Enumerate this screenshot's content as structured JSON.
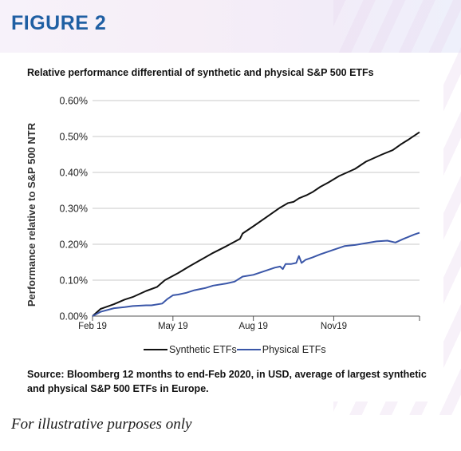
{
  "figure_label": "FIGURE 2",
  "footnote": "For illustrative purposes only",
  "colors": {
    "figure_label": "#1f5fa3",
    "synthetic": "#111111",
    "physical": "#3a56a8"
  },
  "chart_data": {
    "type": "line",
    "title": "Relative performance differential of synthetic and physical S&P 500 ETFs",
    "xlabel": "",
    "ylabel": "Performance relative to S&P 500 NTR",
    "ylim": [
      0,
      0.6
    ],
    "xlim": [
      0,
      12.2
    ],
    "y_ticks": [
      {
        "value": 0.0,
        "label": "0.00%"
      },
      {
        "value": 0.1,
        "label": "0.10%"
      },
      {
        "value": 0.2,
        "label": "0.20%"
      },
      {
        "value": 0.3,
        "label": "0.30%"
      },
      {
        "value": 0.4,
        "label": "0.40%"
      },
      {
        "value": 0.5,
        "label": "0.50%"
      },
      {
        "value": 0.6,
        "label": "0.60%"
      }
    ],
    "x_ticks": [
      {
        "value": 0,
        "label": "Feb 19"
      },
      {
        "value": 3,
        "label": "May 19"
      },
      {
        "value": 6,
        "label": "Aug 19"
      },
      {
        "value": 9,
        "label": "Nov19"
      },
      {
        "value": 12.2,
        "label": ""
      }
    ],
    "grid": "horizontal",
    "legend_position": "bottom",
    "series": [
      {
        "name": "Synthetic ETFs",
        "x": [
          0,
          0.3,
          0.8,
          1.2,
          1.5,
          2.0,
          2.4,
          2.7,
          3.2,
          3.6,
          4.0,
          4.5,
          5.0,
          5.5,
          5.6,
          6.0,
          6.5,
          7.0,
          7.3,
          7.5,
          7.7,
          8.0,
          8.2,
          8.5,
          8.8,
          9.2,
          9.5,
          9.8,
          10.2,
          10.5,
          10.8,
          11.2,
          11.5,
          11.8,
          12.2
        ],
        "y": [
          0,
          0.02,
          0.033,
          0.046,
          0.053,
          0.07,
          0.081,
          0.1,
          0.12,
          0.138,
          0.155,
          0.176,
          0.195,
          0.215,
          0.23,
          0.25,
          0.276,
          0.302,
          0.315,
          0.318,
          0.328,
          0.337,
          0.345,
          0.36,
          0.372,
          0.39,
          0.4,
          0.41,
          0.43,
          0.44,
          0.45,
          0.462,
          0.478,
          0.492,
          0.512
        ]
      },
      {
        "name": "Physical ETFs",
        "x": [
          0,
          0.3,
          0.8,
          1.2,
          1.5,
          2.0,
          2.2,
          2.6,
          2.8,
          3.0,
          3.2,
          3.5,
          3.8,
          4.2,
          4.5,
          5.0,
          5.3,
          5.6,
          6.0,
          6.4,
          6.8,
          7.0,
          7.1,
          7.2,
          7.4,
          7.6,
          7.7,
          7.8,
          7.95,
          8.2,
          8.5,
          9.0,
          9.4,
          9.8,
          10.2,
          10.6,
          11.0,
          11.3,
          11.6,
          12.0,
          12.2
        ],
        "y": [
          0,
          0.012,
          0.022,
          0.025,
          0.028,
          0.03,
          0.03,
          0.035,
          0.048,
          0.058,
          0.06,
          0.065,
          0.072,
          0.078,
          0.085,
          0.091,
          0.096,
          0.11,
          0.115,
          0.125,
          0.135,
          0.138,
          0.131,
          0.145,
          0.145,
          0.148,
          0.167,
          0.148,
          0.157,
          0.163,
          0.172,
          0.185,
          0.195,
          0.198,
          0.203,
          0.208,
          0.21,
          0.205,
          0.215,
          0.227,
          0.232
        ]
      }
    ],
    "source": "Source: Bloomberg 12 months to end-Feb 2020, in USD, average of largest synthetic and physical S&P 500 ETFs in Europe."
  }
}
